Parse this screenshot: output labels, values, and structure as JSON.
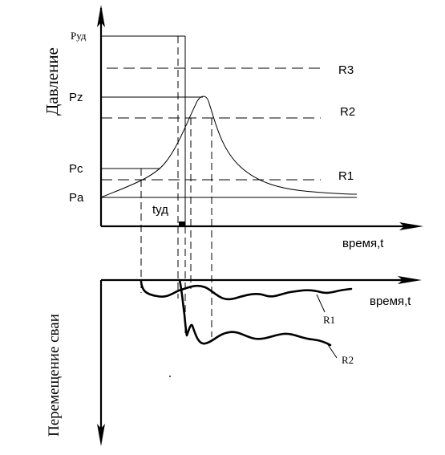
{
  "pressure_graph": {
    "y_axis_label": "Давление",
    "x_axis_label": "время,t",
    "levels": {
      "p_ud": "Руд",
      "p_z": "Pz",
      "p_c": "Pc",
      "p_a": "Pa"
    },
    "thresholds": {
      "r3": "R3",
      "r2": "R2",
      "r1": "R1"
    },
    "impact_time_label": "tуд"
  },
  "displacement_graph": {
    "y_axis_label": "Перемещение сваи",
    "x_axis_label": "время,t",
    "curves": {
      "r1": "R1",
      "r2": "R2"
    }
  }
}
